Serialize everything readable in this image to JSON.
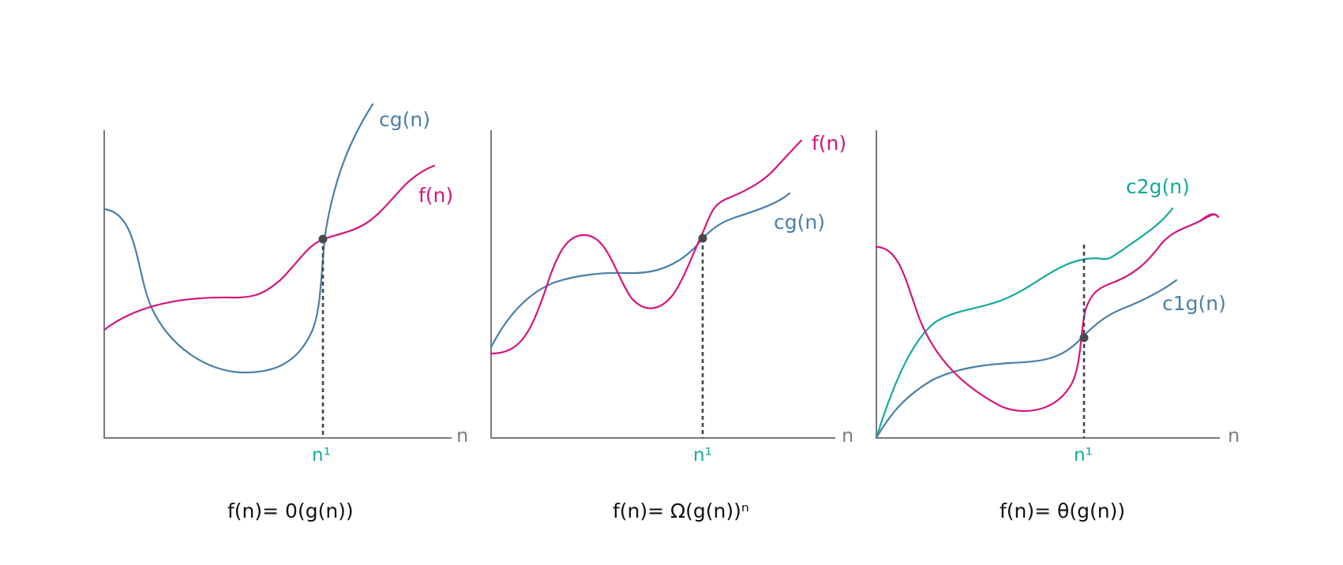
{
  "colors": {
    "magenta": "#d4157f",
    "blue": "#4a7fa8",
    "teal": "#15a99a",
    "axis": "#7a7a7a",
    "dot": "#4a4a4a"
  },
  "panels": [
    {
      "axis_label": "n",
      "tick_label": "n¹",
      "caption": "f(n)= 0(g(n))",
      "curves": [
        {
          "label": "cg(n)",
          "color": "blue"
        },
        {
          "label": "f(n)",
          "color": "magenta"
        }
      ]
    },
    {
      "axis_label": "n",
      "tick_label": "n¹",
      "caption": "f(n)= Ω(g(n))ⁿ",
      "curves": [
        {
          "label": "f(n)",
          "color": "magenta"
        },
        {
          "label": "cg(n)",
          "color": "blue"
        }
      ]
    },
    {
      "axis_label": "n",
      "tick_label": "n¹",
      "caption": "f(n)= θ(g(n))",
      "curves": [
        {
          "label": "c2g(n)",
          "color": "teal"
        },
        {
          "label": "c1g(n)",
          "color": "blue"
        },
        {
          "label": "f(n)",
          "color": "magenta"
        }
      ]
    }
  ]
}
